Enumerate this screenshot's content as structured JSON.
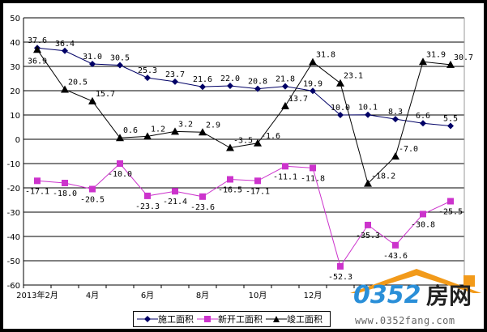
{
  "chart_data": {
    "type": "line",
    "title": "",
    "xlabel": "",
    "ylabel": "",
    "ylim": [
      -60,
      50
    ],
    "yticks": [
      50,
      40,
      30,
      20,
      10,
      0,
      -10,
      -20,
      -30,
      -40,
      -50,
      -60
    ],
    "grid": true,
    "legend_position": "bottom",
    "x_tick_labels": [
      "2013年2月",
      "4月",
      "6月",
      "8月",
      "10月",
      "12月"
    ],
    "series": [
      {
        "name": "施工面积",
        "color": "#000066",
        "marker": "diamond",
        "values": [
          37.6,
          36.4,
          31.0,
          30.5,
          25.3,
          23.7,
          21.6,
          22.0,
          20.8,
          21.8,
          19.9,
          10.0,
          10.1,
          8.3,
          6.6,
          5.5
        ]
      },
      {
        "name": "新开工面积",
        "color": "#cc33cc",
        "marker": "square",
        "values": [
          -17.1,
          -18.0,
          -20.5,
          -10.0,
          -23.3,
          -21.4,
          -23.6,
          -16.5,
          -17.1,
          -11.1,
          -11.8,
          -52.3,
          -35.3,
          -43.6,
          -30.8,
          -25.5
        ]
      },
      {
        "name": "竣工面积",
        "color": "#000000",
        "marker": "triangle",
        "values": [
          36.9,
          20.5,
          15.7,
          0.6,
          1.2,
          3.2,
          2.9,
          -3.5,
          -1.6,
          13.7,
          31.8,
          23.1,
          -18.2,
          -7.0,
          31.9,
          30.7
        ]
      }
    ]
  },
  "watermark": {
    "brand": "0352",
    "brand_cn": "房网",
    "url": "www.0352fang.com"
  }
}
